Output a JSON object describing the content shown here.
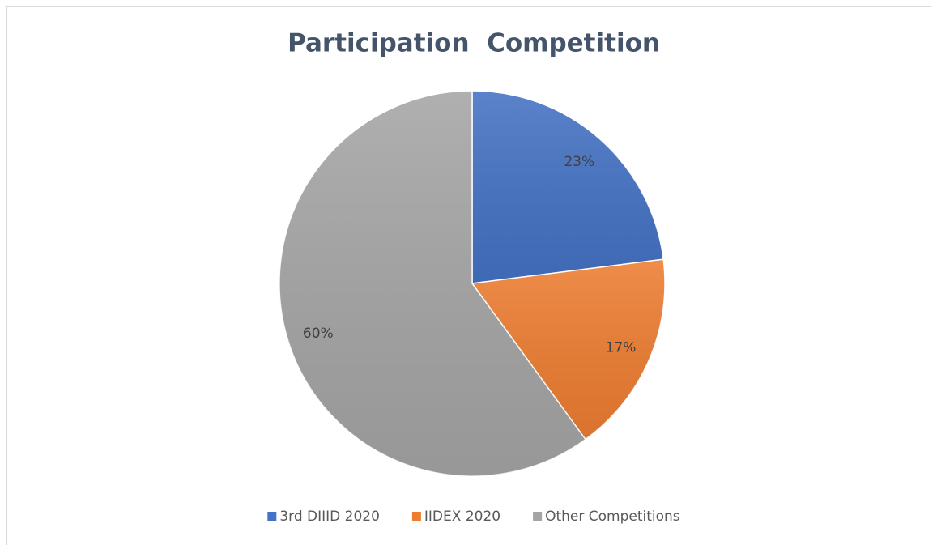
{
  "chart_data": {
    "type": "pie",
    "title": "Participation  Competition",
    "categories": [
      "3rd DIIID 2020",
      "IIDEX 2020",
      "Other Competitions"
    ],
    "values": [
      23,
      17,
      60
    ],
    "value_labels": [
      "23%",
      "17%",
      "60%"
    ],
    "colors": [
      "#4472c4",
      "#ed7d31",
      "#a5a5a5"
    ],
    "legend": "bottom"
  }
}
